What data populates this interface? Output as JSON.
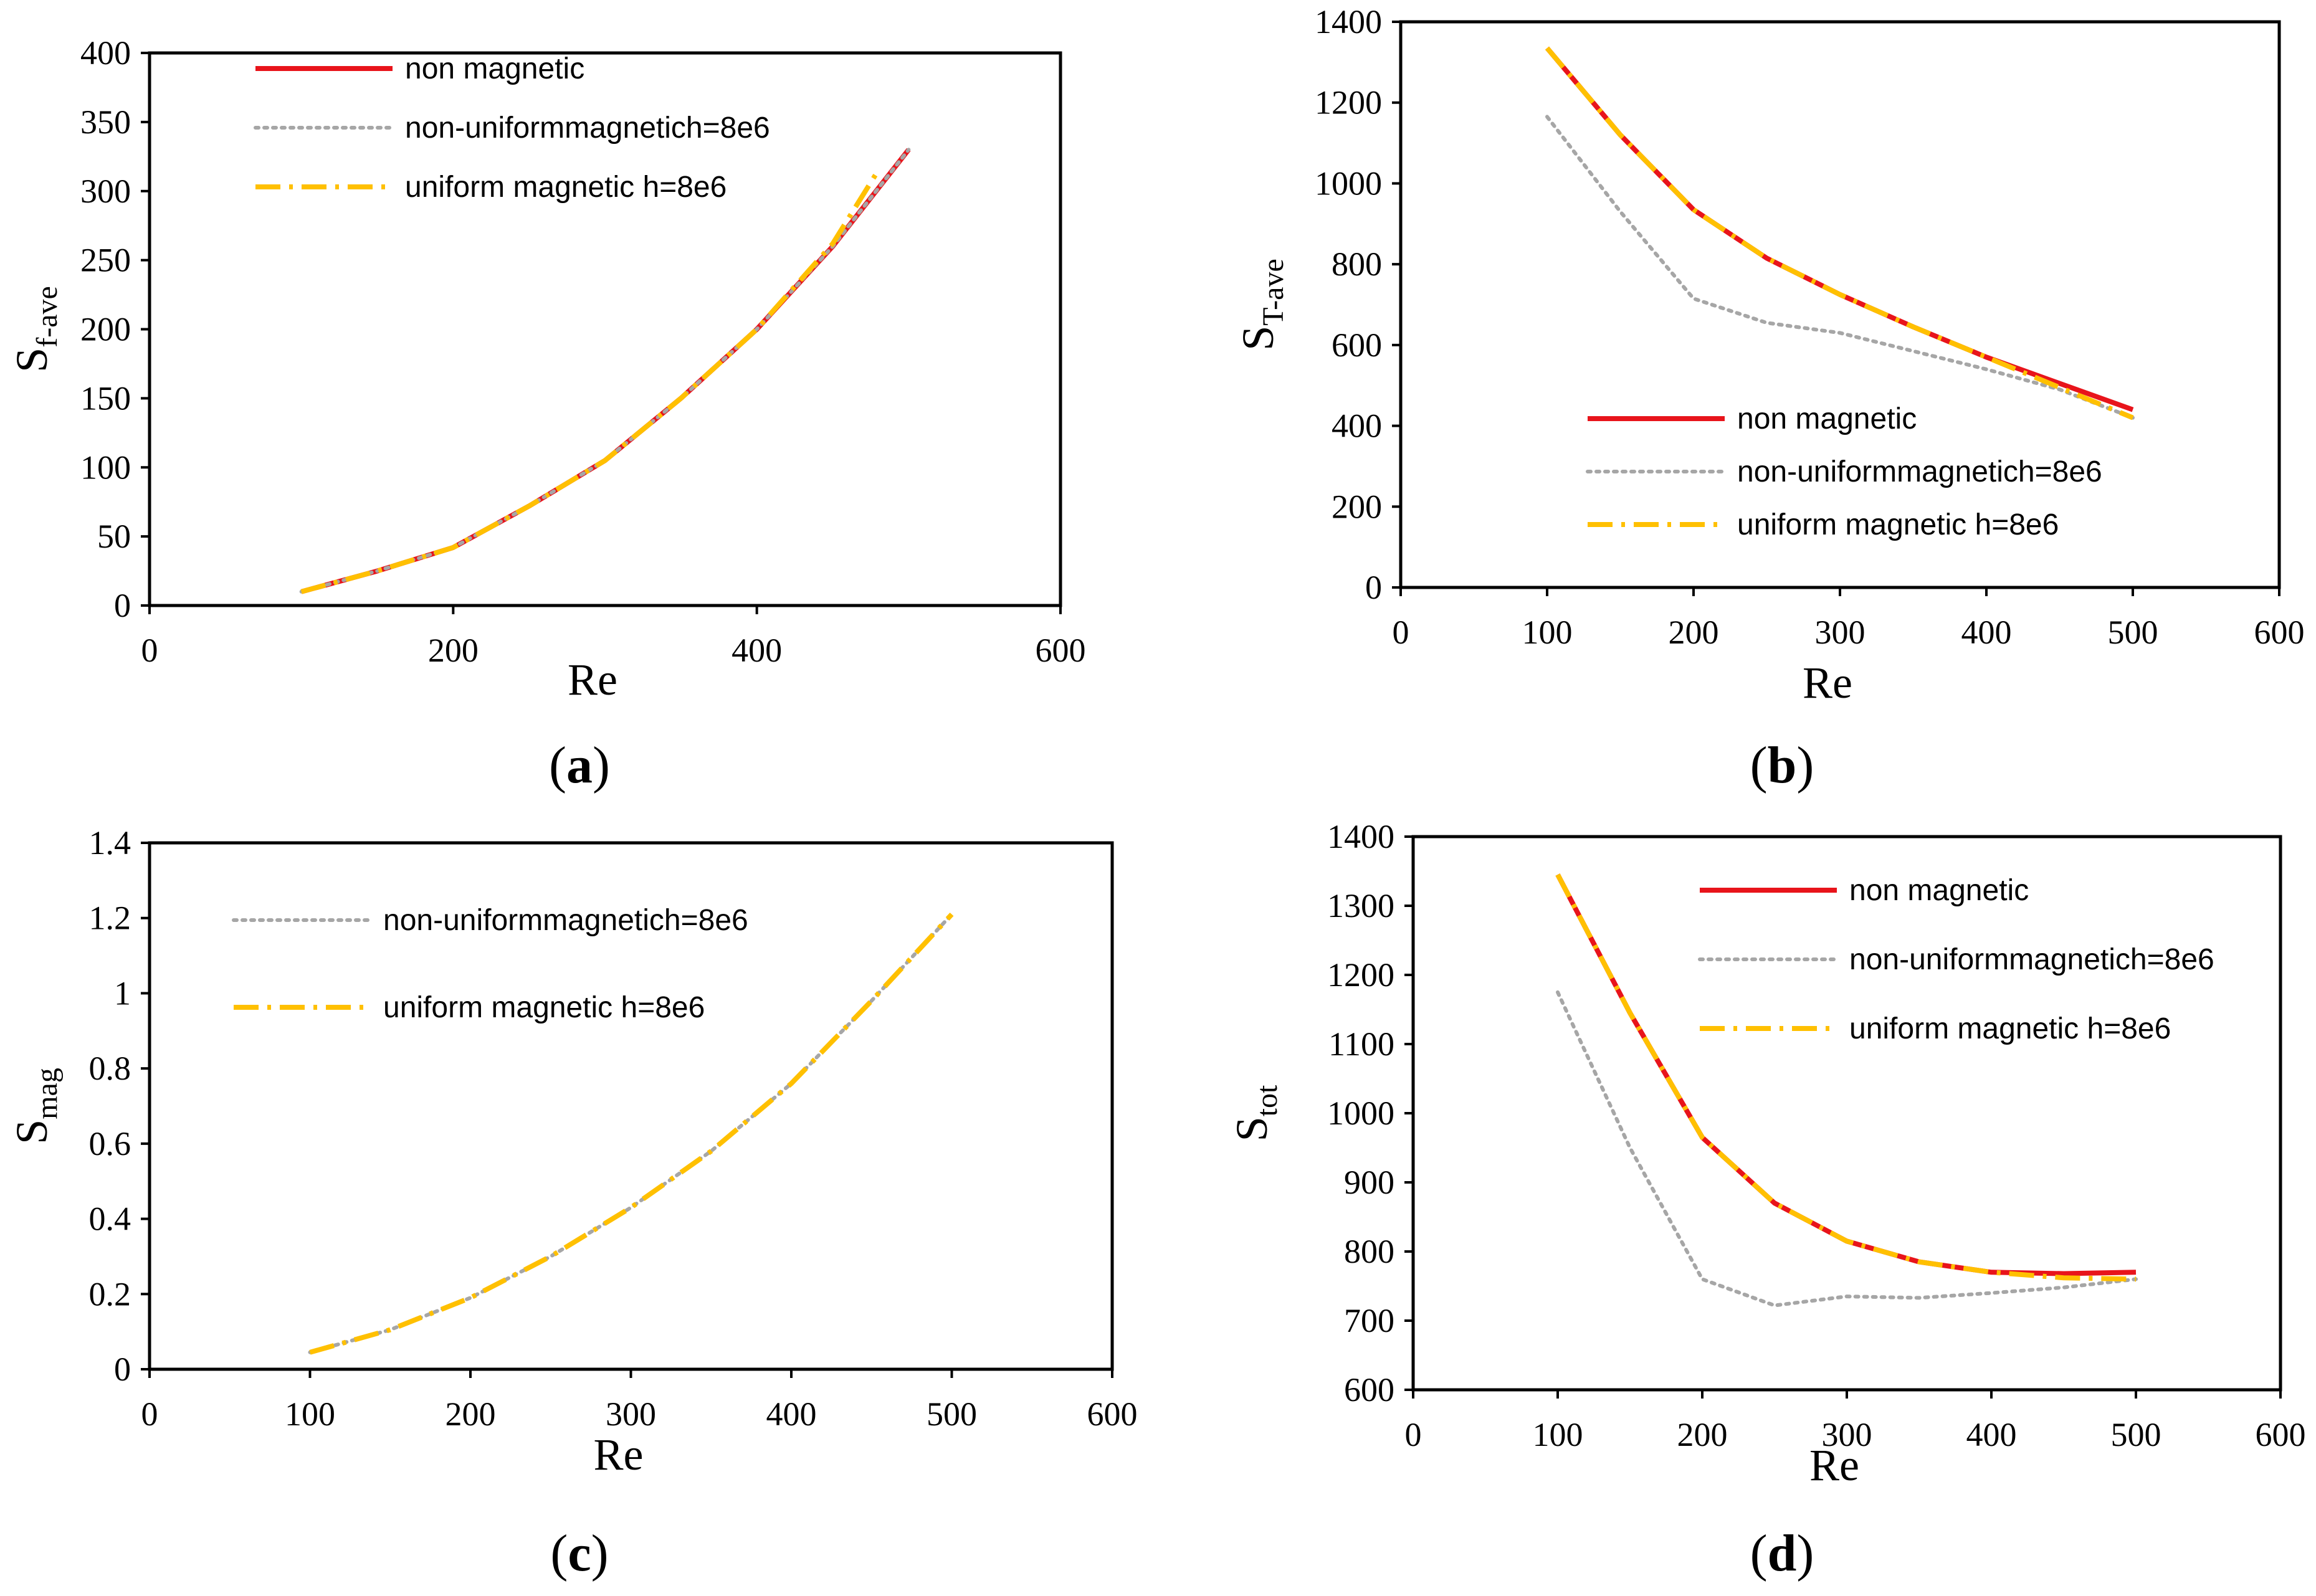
{
  "chart_data": [
    {
      "id": "a",
      "type": "line",
      "caption_letter": "a",
      "xlabel": "Re",
      "ylabel_main": "S",
      "ylabel_sub": "f-ave",
      "xlim": [
        0,
        600
      ],
      "ylim": [
        0,
        400
      ],
      "xticks": [
        0,
        200,
        400,
        600
      ],
      "yticks": [
        0,
        50,
        100,
        150,
        200,
        250,
        300,
        350,
        400
      ],
      "ytick_labels": [
        "0",
        "50",
        "100",
        "150",
        "200",
        "250",
        "300",
        "350",
        "400"
      ],
      "xtick_labels": [
        "0",
        "200",
        "400",
        "600"
      ],
      "legend_position": "top-left",
      "series": [
        {
          "name": "non magnetic",
          "style": "solid",
          "color": "#e8141b",
          "x": [
            100,
            150,
            200,
            250,
            300,
            350,
            400,
            450,
            500
          ],
          "y": [
            10,
            25,
            42,
            72,
            105,
            150,
            200,
            260,
            330
          ]
        },
        {
          "name": "non-uniformmagnetich=8e6",
          "style": "dotted",
          "color": "#a6a6a6",
          "x": [
            100,
            150,
            200,
            250,
            300,
            350,
            400,
            450,
            500
          ],
          "y": [
            10,
            25,
            42,
            72,
            105,
            150,
            200,
            260,
            330
          ]
        },
        {
          "name": "uniform magnetic h=8e6",
          "style": "dashdot",
          "color": "#ffc000",
          "x": [
            100,
            150,
            200,
            250,
            300,
            350,
            400,
            450,
            480
          ],
          "y": [
            10,
            25,
            42,
            72,
            105,
            150,
            200,
            262,
            315
          ]
        }
      ]
    },
    {
      "id": "b",
      "type": "line",
      "caption_letter": "b",
      "xlabel": "Re",
      "ylabel_main": "S",
      "ylabel_sub": "T-ave",
      "xlim": [
        0,
        600
      ],
      "ylim": [
        0,
        1400
      ],
      "xticks": [
        0,
        100,
        200,
        300,
        400,
        500,
        600
      ],
      "yticks": [
        0,
        200,
        400,
        600,
        800,
        1000,
        1200,
        1400
      ],
      "ytick_labels": [
        "0",
        "200",
        "400",
        "600",
        "800",
        "1000",
        "1200",
        "1400"
      ],
      "xtick_labels": [
        "0",
        "100",
        "200",
        "300",
        "400",
        "500",
        "600"
      ],
      "legend_position": "bottom-center",
      "series": [
        {
          "name": "non magnetic",
          "style": "solid",
          "color": "#e8141b",
          "x": [
            100,
            150,
            200,
            250,
            300,
            350,
            400,
            450,
            500
          ],
          "y": [
            1335,
            1120,
            935,
            815,
            725,
            645,
            570,
            505,
            440
          ]
        },
        {
          "name": "non-uniformmagnetich=8e6",
          "style": "dotted",
          "color": "#a6a6a6",
          "x": [
            100,
            150,
            200,
            250,
            300,
            350,
            400,
            450,
            500
          ],
          "y": [
            1165,
            930,
            715,
            655,
            630,
            585,
            540,
            490,
            420
          ]
        },
        {
          "name": "uniform magnetic h=8e6",
          "style": "dashdot",
          "color": "#ffc000",
          "x": [
            100,
            150,
            200,
            250,
            300,
            350,
            400,
            450,
            500
          ],
          "y": [
            1335,
            1120,
            935,
            815,
            725,
            645,
            570,
            495,
            420
          ]
        }
      ]
    },
    {
      "id": "c",
      "type": "line",
      "caption_letter": "c",
      "xlabel": "Re",
      "ylabel_main": "S",
      "ylabel_sub": "mag",
      "xlim": [
        0,
        600
      ],
      "ylim": [
        0,
        1.4
      ],
      "xticks": [
        0,
        100,
        200,
        300,
        400,
        500,
        600
      ],
      "yticks": [
        0,
        0.2,
        0.4,
        0.6,
        0.8,
        1,
        1.2,
        1.4
      ],
      "ytick_labels": [
        "0",
        "0.2",
        "0.4",
        "0.6",
        "0.8",
        "1",
        "1.2",
        "1.4"
      ],
      "xtick_labels": [
        "0",
        "100",
        "200",
        "300",
        "400",
        "500",
        "600"
      ],
      "legend_position": "top-left",
      "series": [
        {
          "name": "non-uniformmagnetich=8e6",
          "style": "dotted",
          "color": "#a6a6a6",
          "x": [
            100,
            150,
            200,
            250,
            300,
            350,
            400,
            450,
            500
          ],
          "y": [
            0.045,
            0.105,
            0.19,
            0.3,
            0.43,
            0.58,
            0.76,
            0.98,
            1.21
          ]
        },
        {
          "name": "uniform magnetic h=8e6",
          "style": "dashdot",
          "color": "#ffc000",
          "x": [
            100,
            150,
            200,
            250,
            300,
            350,
            400,
            450,
            500
          ],
          "y": [
            0.045,
            0.105,
            0.19,
            0.3,
            0.43,
            0.58,
            0.76,
            0.98,
            1.21
          ]
        }
      ]
    },
    {
      "id": "d",
      "type": "line",
      "caption_letter": "d",
      "xlabel": "Re",
      "ylabel_main": "S",
      "ylabel_sub": "tot",
      "xlim": [
        0,
        600
      ],
      "ylim": [
        600,
        1400
      ],
      "xticks": [
        0,
        100,
        200,
        300,
        400,
        500,
        600
      ],
      "yticks": [
        600,
        700,
        800,
        900,
        1000,
        1100,
        1200,
        1300,
        1400
      ],
      "ytick_labels": [
        "600",
        "700",
        "800",
        "900",
        "1000",
        "1100",
        "1200",
        "1300",
        "1400"
      ],
      "xtick_labels": [
        "0",
        "100",
        "200",
        "300",
        "400",
        "500",
        "600"
      ],
      "legend_position": "top-right",
      "series": [
        {
          "name": "non magnetic",
          "style": "solid",
          "color": "#e8141b",
          "x": [
            100,
            150,
            200,
            250,
            300,
            350,
            400,
            450,
            500
          ],
          "y": [
            1345,
            1145,
            965,
            870,
            815,
            785,
            770,
            768,
            770
          ]
        },
        {
          "name": "non-uniformmagnetich=8e6",
          "style": "dotted",
          "color": "#a6a6a6",
          "x": [
            100,
            150,
            200,
            250,
            300,
            350,
            400,
            450,
            500
          ],
          "y": [
            1175,
            950,
            760,
            722,
            735,
            733,
            740,
            748,
            760
          ]
        },
        {
          "name": "uniform magnetic h=8e6",
          "style": "dashdot",
          "color": "#ffc000",
          "x": [
            100,
            150,
            200,
            250,
            300,
            350,
            400,
            450,
            500
          ],
          "y": [
            1345,
            1145,
            965,
            870,
            815,
            785,
            770,
            762,
            760
          ]
        }
      ]
    }
  ]
}
